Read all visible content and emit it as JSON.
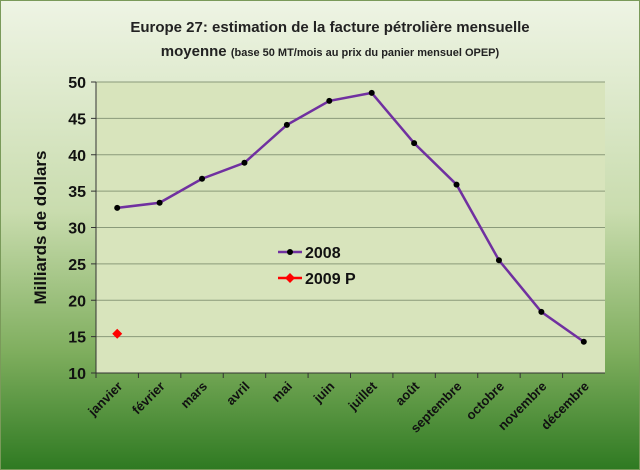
{
  "chart_data": {
    "type": "line",
    "title": "Europe 27: estimation  de la facture pétrolière mensuelle",
    "title_line2": "moyenne",
    "subtitle": "(base 50 MT/mois au prix du panier mensuel OPEP)",
    "xlabel": "",
    "ylabel": "Milliards de dollars",
    "ylim": [
      10,
      50
    ],
    "yticks": [
      10,
      15,
      20,
      25,
      30,
      35,
      40,
      45,
      50
    ],
    "grid": true,
    "legend_position": "center-left",
    "categories": [
      "janvier",
      "février",
      "mars",
      "avril",
      "mai",
      "juin",
      "juillet",
      "août",
      "septembre",
      "octobre",
      "novembre",
      "décembre"
    ],
    "series": [
      {
        "name": "2008",
        "color": "#7030a0",
        "marker_color": "#000000",
        "marker": "circle",
        "values": [
          32.7,
          33.4,
          36.7,
          38.9,
          44.1,
          47.4,
          48.5,
          41.6,
          35.9,
          25.5,
          18.4,
          14.3
        ]
      },
      {
        "name": "2009 P",
        "color": "#ff0000",
        "marker_color": "#ff0000",
        "marker": "diamond",
        "values": [
          15.4,
          null,
          null,
          null,
          null,
          null,
          null,
          null,
          null,
          null,
          null,
          null
        ]
      }
    ]
  }
}
